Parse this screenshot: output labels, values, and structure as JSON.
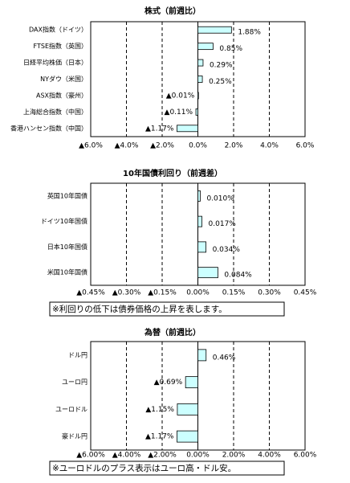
{
  "chart_data": [
    {
      "type": "hbar",
      "title": "株式（前週比）",
      "categories": [
        "DAX指数（ドイツ）",
        "FTSE指数（英国）",
        "日経平均株価（日本）",
        "NYダウ（米国）",
        "ASX指数（豪州）",
        "上海総合指数（中国）",
        "香港ハンセン指数（中国）"
      ],
      "values": [
        1.88,
        0.85,
        0.29,
        0.25,
        -0.01,
        -0.11,
        -1.17
      ],
      "value_labels": [
        "1.88%",
        "0.85%",
        "0.29%",
        "0.25%",
        "▲0.01%",
        "▲0.11%",
        "▲1.17%"
      ],
      "color": "#ccffff",
      "negative_color": "#ff0000",
      "grid": true,
      "xlim": [
        -6,
        6
      ],
      "xticks": [
        {
          "value": -6,
          "label": "▲6.0%"
        },
        {
          "value": -4,
          "label": "▲4.0%"
        },
        {
          "value": -2,
          "label": "▲2.0%"
        },
        {
          "value": 0,
          "label": "0.0%"
        },
        {
          "value": 2,
          "label": "2.0%"
        },
        {
          "value": 4,
          "label": "4.0%"
        },
        {
          "value": 6,
          "label": "6.0%"
        }
      ]
    },
    {
      "type": "hbar",
      "title": "10年国債利回り（前週差）",
      "categories": [
        "英国10年国債",
        "ドイツ10年国債",
        "日本10年国債",
        "米国10年国債"
      ],
      "values": [
        0.01,
        0.017,
        0.034,
        0.084
      ],
      "value_labels": [
        "0.010%",
        "0.017%",
        "0.034%",
        "0.084%"
      ],
      "color": "#ccffff",
      "negative_color": "#ff0000",
      "grid": true,
      "xlim": [
        -0.45,
        0.45
      ],
      "xticks": [
        {
          "value": -0.45,
          "label": "▲0.45%"
        },
        {
          "value": -0.3,
          "label": "▲0.30%"
        },
        {
          "value": -0.15,
          "label": "▲0.15%"
        },
        {
          "value": 0,
          "label": "0.00%"
        },
        {
          "value": 0.15,
          "label": "0.15%"
        },
        {
          "value": 0.3,
          "label": "0.30%"
        },
        {
          "value": 0.45,
          "label": "0.45%"
        }
      ],
      "note": "※利回りの低下は債券価格の上昇を表します。"
    },
    {
      "type": "hbar",
      "title": "為替（前週比）",
      "categories": [
        "ドル円",
        "ユーロ円",
        "ユーロドル",
        "豪ドル円"
      ],
      "values": [
        0.46,
        -0.69,
        -1.15,
        -1.17
      ],
      "value_labels": [
        "0.46%",
        "▲0.69%",
        "▲1.15%",
        "▲1.17%"
      ],
      "color": "#ccffff",
      "negative_color": "#ff0000",
      "grid": true,
      "xlim": [
        -6,
        6
      ],
      "xticks": [
        {
          "value": -6,
          "label": "▲6.00%"
        },
        {
          "value": -4,
          "label": "▲4.00%"
        },
        {
          "value": -2,
          "label": "▲2.00%"
        },
        {
          "value": 0,
          "label": "0.00%"
        },
        {
          "value": 2,
          "label": "2.00%"
        },
        {
          "value": 4,
          "label": "4.00%"
        },
        {
          "value": 6,
          "label": "6.00%"
        }
      ],
      "note": "※ユーロドルのプラス表示はユーロ高・ドル安。"
    }
  ]
}
